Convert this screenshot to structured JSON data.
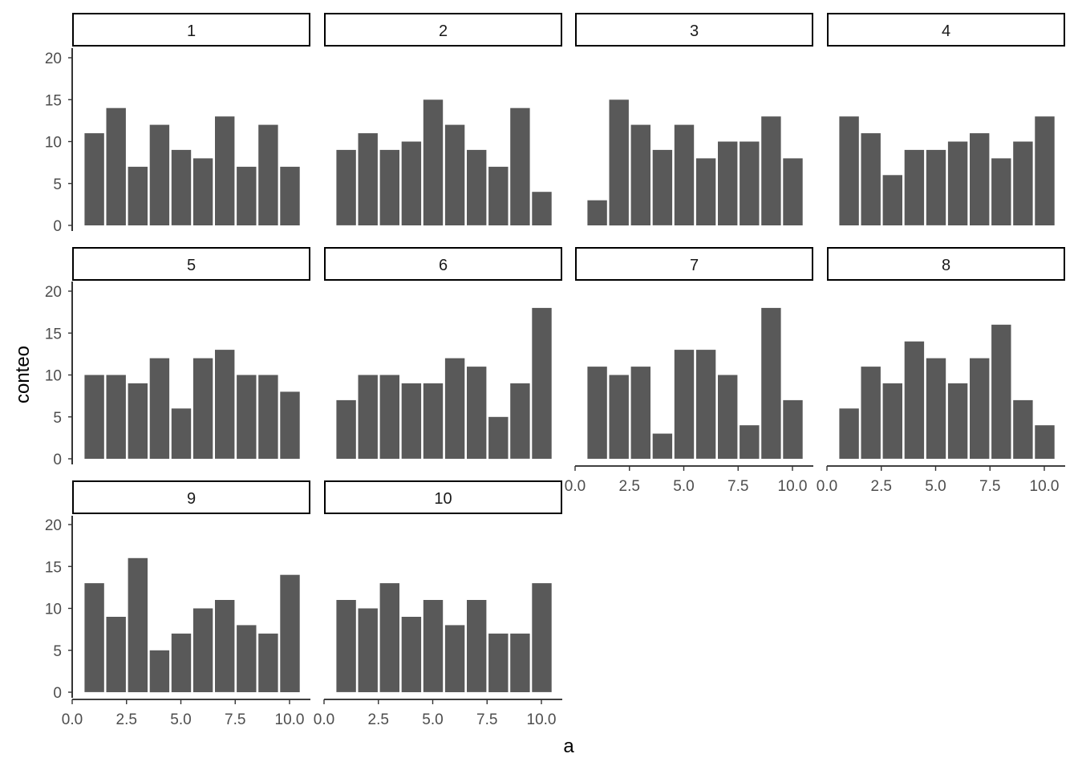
{
  "chart_data": {
    "type": "bar",
    "xlabel": "a",
    "ylabel": "conteo",
    "xlim": [
      0,
      10
    ],
    "ylim": [
      0,
      20
    ],
    "x_ticks": [
      "0.0",
      "2.5",
      "5.0",
      "7.5",
      "10.0"
    ],
    "y_ticks": [
      "0",
      "5",
      "10",
      "15",
      "20"
    ],
    "bar_color": "#595959",
    "categories": [
      1,
      2,
      3,
      4,
      5,
      6,
      7,
      8,
      9,
      10
    ],
    "facets": [
      {
        "label": "1",
        "values": [
          11,
          14,
          7,
          12,
          9,
          8,
          13,
          7,
          12,
          7
        ]
      },
      {
        "label": "2",
        "values": [
          9,
          11,
          9,
          10,
          15,
          12,
          9,
          7,
          14,
          4
        ]
      },
      {
        "label": "3",
        "values": [
          3,
          15,
          12,
          9,
          12,
          8,
          10,
          10,
          13,
          8
        ]
      },
      {
        "label": "4",
        "values": [
          13,
          11,
          6,
          9,
          9,
          10,
          11,
          8,
          10,
          13
        ]
      },
      {
        "label": "5",
        "values": [
          10,
          10,
          9,
          12,
          6,
          12,
          13,
          10,
          10,
          8
        ]
      },
      {
        "label": "6",
        "values": [
          7,
          10,
          10,
          9,
          9,
          12,
          11,
          5,
          9,
          18
        ]
      },
      {
        "label": "7",
        "values": [
          11,
          10,
          11,
          3,
          13,
          13,
          10,
          4,
          18,
          7
        ]
      },
      {
        "label": "8",
        "values": [
          6,
          11,
          9,
          14,
          12,
          9,
          12,
          16,
          7,
          4
        ]
      },
      {
        "label": "9",
        "values": [
          13,
          9,
          16,
          5,
          7,
          10,
          11,
          8,
          7,
          14
        ]
      },
      {
        "label": "10",
        "values": [
          11,
          10,
          13,
          9,
          11,
          8,
          11,
          7,
          7,
          13
        ]
      }
    ]
  }
}
